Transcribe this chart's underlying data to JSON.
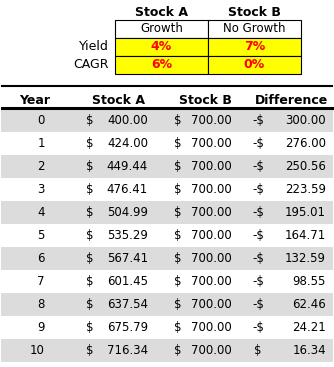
{
  "top_headers": [
    "Stock A",
    "Stock B"
  ],
  "top_subheaders": [
    "Growth",
    "No Growth"
  ],
  "top_row_labels": [
    "Yield",
    "CAGR"
  ],
  "top_values": [
    [
      "4%",
      "7%"
    ],
    [
      "6%",
      "0%"
    ]
  ],
  "top_cell_bg": "#FFFF00",
  "top_cell_fg": "#FF0000",
  "top_border_color": "#000000",
  "table_headers": [
    "Year",
    "Stock A",
    "Stock B",
    "Difference"
  ],
  "years": [
    0,
    1,
    2,
    3,
    4,
    5,
    6,
    7,
    8,
    9,
    10
  ],
  "stock_a": [
    400.0,
    424.0,
    449.44,
    476.41,
    504.99,
    535.29,
    567.41,
    601.45,
    637.54,
    675.79,
    716.34
  ],
  "stock_b": [
    700.0,
    700.0,
    700.0,
    700.0,
    700.0,
    700.0,
    700.0,
    700.0,
    700.0,
    700.0,
    700.0
  ],
  "diff_values": [
    -300.0,
    -276.0,
    -250.56,
    -223.59,
    -195.01,
    -164.71,
    -132.59,
    -98.55,
    -62.46,
    -24.21,
    16.34
  ],
  "row_bg_odd": "#DCDCDC",
  "row_bg_even": "#FFFFFF",
  "bg_color": "#FFFFFF"
}
